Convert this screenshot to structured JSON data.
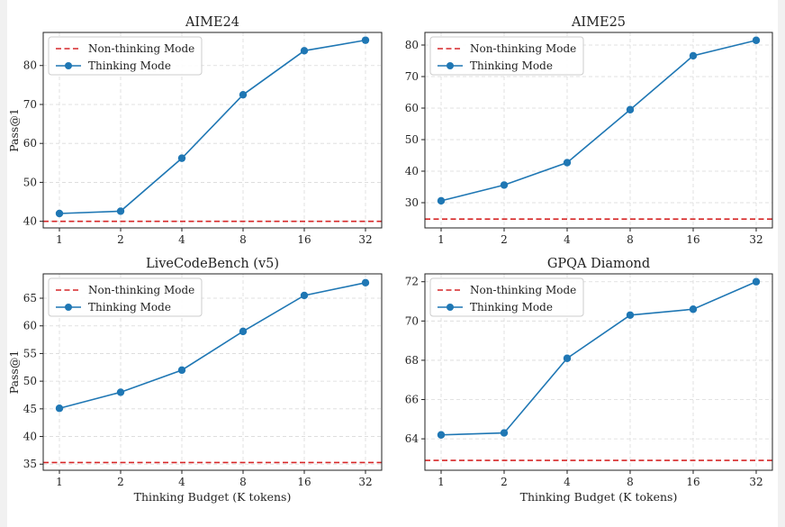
{
  "chart_data": [
    {
      "type": "line",
      "title": "AIME24",
      "xlabel": "",
      "ylabel": "Pass@1",
      "categories": [
        "1",
        "2",
        "4",
        "8",
        "16",
        "32"
      ],
      "ylim": [
        38.3,
        88.5
      ],
      "yticks": [
        40,
        50,
        60,
        70,
        80
      ],
      "grid": true,
      "legend": "top-left",
      "series": [
        {
          "name": "Non-thinking Mode",
          "style": "dashed",
          "color": "#d62728",
          "values": [
            40.0,
            40.0,
            40.0,
            40.0,
            40.0,
            40.0
          ]
        },
        {
          "name": "Thinking Mode",
          "style": "solid-marker",
          "color": "#1f77b4",
          "values": [
            42.0,
            42.6,
            56.2,
            72.5,
            83.8,
            86.5
          ]
        }
      ]
    },
    {
      "type": "line",
      "title": "AIME25",
      "xlabel": "",
      "ylabel": "",
      "categories": [
        "1",
        "2",
        "4",
        "8",
        "16",
        "32"
      ],
      "ylim": [
        22.0,
        84.0
      ],
      "yticks": [
        30,
        40,
        50,
        60,
        70,
        80
      ],
      "grid": true,
      "legend": "top-left",
      "series": [
        {
          "name": "Non-thinking Mode",
          "style": "dashed",
          "color": "#d62728",
          "values": [
            24.8,
            24.8,
            24.8,
            24.8,
            24.8,
            24.8
          ]
        },
        {
          "name": "Thinking Mode",
          "style": "solid-marker",
          "color": "#1f77b4",
          "values": [
            30.6,
            35.6,
            42.7,
            59.5,
            76.6,
            81.5
          ]
        }
      ]
    },
    {
      "type": "line",
      "title": "LiveCodeBench (v5)",
      "xlabel": "Thinking Budget (K tokens)",
      "ylabel": "Pass@1",
      "categories": [
        "1",
        "2",
        "4",
        "8",
        "16",
        "32"
      ],
      "ylim": [
        33.9,
        69.4
      ],
      "yticks": [
        35,
        40,
        45,
        50,
        55,
        60,
        65
      ],
      "grid": true,
      "legend": "top-left",
      "series": [
        {
          "name": "Non-thinking Mode",
          "style": "dashed",
          "color": "#d62728",
          "values": [
            35.3,
            35.3,
            35.3,
            35.3,
            35.3,
            35.3
          ]
        },
        {
          "name": "Thinking Mode",
          "style": "solid-marker",
          "color": "#1f77b4",
          "values": [
            45.1,
            48.0,
            52.0,
            59.0,
            65.5,
            67.8
          ]
        }
      ]
    },
    {
      "type": "line",
      "title": "GPQA Diamond",
      "xlabel": "Thinking Budget (K tokens)",
      "ylabel": "",
      "categories": [
        "1",
        "2",
        "4",
        "8",
        "16",
        "32"
      ],
      "ylim": [
        62.4,
        72.4
      ],
      "yticks": [
        64,
        66,
        68,
        70,
        72
      ],
      "grid": true,
      "legend": "top-left",
      "series": [
        {
          "name": "Non-thinking Mode",
          "style": "dashed",
          "color": "#d62728",
          "values": [
            62.9,
            62.9,
            62.9,
            62.9,
            62.9,
            62.9
          ]
        },
        {
          "name": "Thinking Mode",
          "style": "solid-marker",
          "color": "#1f77b4",
          "values": [
            64.2,
            64.3,
            68.1,
            70.3,
            70.6,
            72.0
          ]
        }
      ]
    }
  ]
}
